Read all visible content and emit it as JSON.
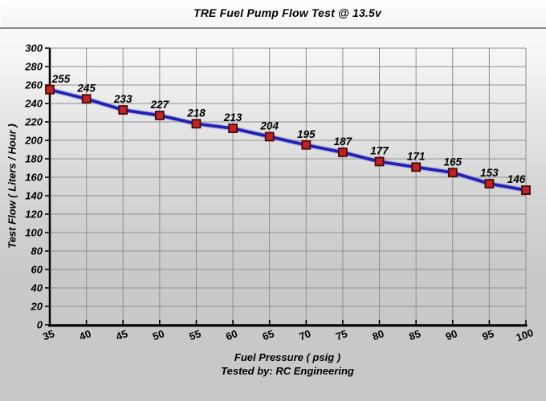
{
  "chart_data": {
    "type": "line",
    "title": "TRE Fuel Pump Flow Test @ 13.5v",
    "x": [
      35,
      40,
      45,
      50,
      55,
      60,
      65,
      70,
      75,
      80,
      85,
      90,
      95,
      100
    ],
    "values": [
      255,
      245,
      233,
      227,
      218,
      213,
      204,
      195,
      187,
      177,
      171,
      165,
      153,
      146
    ],
    "xlabel": "Fuel Pressure ( psig )",
    "ylabel": "Test Flow ( Liters / Hour )",
    "footer": "Tested by: RC Engineering",
    "xlim": [
      35,
      100
    ],
    "ylim": [
      0,
      300
    ],
    "x_tick_step": 5,
    "y_tick_step": 20,
    "grid": true,
    "legend": "none",
    "data_labels": true,
    "colors": {
      "line": "#2121b4",
      "line_halo": "#9a9ad8",
      "marker_fill": "#c52222",
      "marker_border": "#470b0b",
      "grid": "#8f8f8f",
      "axis": "#000000",
      "text": "#000000"
    }
  }
}
